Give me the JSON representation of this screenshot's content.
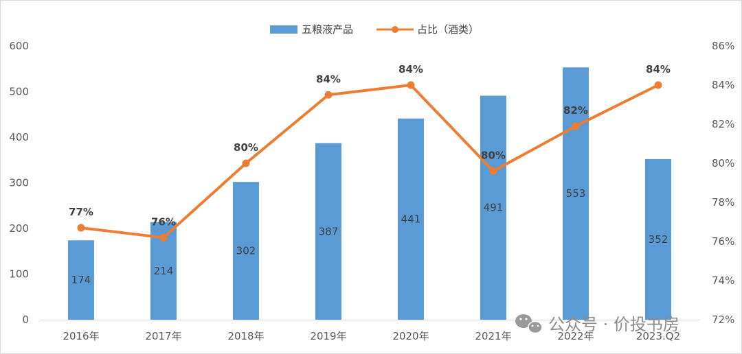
{
  "chart_data": {
    "type": "bar",
    "categories": [
      "2016年",
      "2017年",
      "2018年",
      "2019年",
      "2020年",
      "2021年",
      "2022年",
      "2023.Q2"
    ],
    "series": [
      {
        "name": "五粮液产品",
        "type": "bar",
        "axis": "left",
        "color": "#5b9bd5",
        "values": [
          174,
          214,
          302,
          387,
          441,
          491,
          553,
          352
        ],
        "labels": [
          "174",
          "214",
          "302",
          "387",
          "441",
          "491",
          "553",
          "352"
        ]
      },
      {
        "name": "占比（酒类）",
        "type": "line",
        "axis": "right",
        "color": "#ed7d31",
        "values": [
          76.7,
          76.2,
          80.0,
          83.5,
          84.0,
          79.6,
          81.9,
          84.0
        ],
        "labels": [
          "77%",
          "76%",
          "80%",
          "84%",
          "84%",
          "80%",
          "82%",
          "84%"
        ]
      }
    ],
    "y_left": {
      "min": 0,
      "max": 600,
      "ticks": [
        "0",
        "100",
        "200",
        "300",
        "400",
        "500",
        "600"
      ]
    },
    "y_right": {
      "min": 72,
      "max": 86,
      "ticks": [
        "72%",
        "74%",
        "76%",
        "78%",
        "80%",
        "82%",
        "84%",
        "86%"
      ]
    },
    "legend_position": "top-center",
    "grid": false
  },
  "watermark": {
    "text": "公众号 · 价投书房",
    "icon": "wechat-icon",
    "color": "#8c8c8c"
  }
}
